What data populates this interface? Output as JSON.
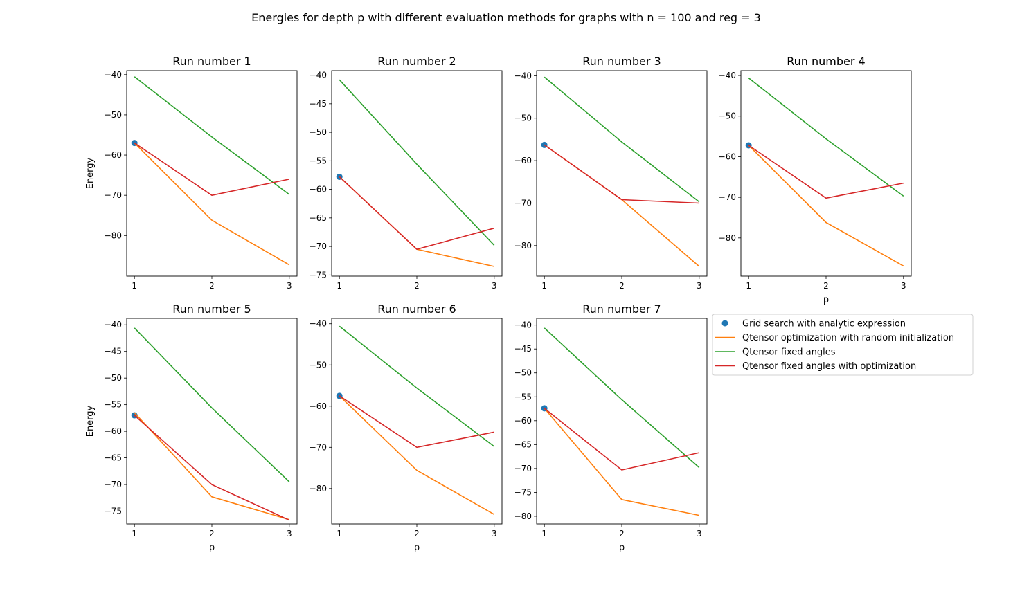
{
  "suptitle": "Energies for depth p with different evaluation methods for graphs with n = 100 and reg = 3",
  "colors": {
    "grid_search": "#1f77b4",
    "qtensor_random": "#ff7f0e",
    "qtensor_fixed": "#2ca02c",
    "qtensor_fixed_opt": "#d62728"
  },
  "legend": {
    "placement": "right of bottom row",
    "entries": [
      {
        "key": "grid_search",
        "label": "Grid search with analytic expression",
        "marker": "dot"
      },
      {
        "key": "qtensor_random",
        "label": "Qtensor optimization with random initialization",
        "marker": "line"
      },
      {
        "key": "qtensor_fixed",
        "label": "Qtensor fixed angles",
        "marker": "line"
      },
      {
        "key": "qtensor_fixed_opt",
        "label": "Qtensor fixed angles with optimization",
        "marker": "line"
      }
    ]
  },
  "chart_data": [
    {
      "type": "line",
      "title": "Run number 1",
      "xlabel": "",
      "ylabel": "Energy",
      "x": [
        1,
        2,
        3
      ],
      "xticks": [
        1,
        2,
        3
      ],
      "xlim": [
        0.9,
        3.1
      ],
      "ylim": [
        -90.1,
        -39.0
      ],
      "yticks": [
        -40,
        -50,
        -60,
        -70,
        -80
      ],
      "series": [
        {
          "key": "grid_search",
          "name": "Grid search with analytic expression",
          "x": [
            1
          ],
          "values": [
            -57.0
          ]
        },
        {
          "key": "qtensor_random",
          "name": "Qtensor optimization with random initialization",
          "values": [
            -57.0,
            -76.2,
            -87.3
          ]
        },
        {
          "key": "qtensor_fixed",
          "name": "Qtensor fixed angles",
          "values": [
            -40.5,
            -55.5,
            -69.8
          ]
        },
        {
          "key": "qtensor_fixed_opt",
          "name": "Qtensor fixed angles with optimization",
          "values": [
            -57.0,
            -70.0,
            -66.0
          ]
        }
      ]
    },
    {
      "type": "line",
      "title": "Run number 2",
      "xlabel": "",
      "ylabel": "",
      "x": [
        1,
        2,
        3
      ],
      "xticks": [
        1,
        2,
        3
      ],
      "xlim": [
        0.9,
        3.1
      ],
      "ylim": [
        -75.2,
        -39.2
      ],
      "yticks": [
        -40,
        -45,
        -50,
        -55,
        -60,
        -65,
        -70,
        -75
      ],
      "series": [
        {
          "key": "grid_search",
          "name": "Grid search with analytic expression",
          "x": [
            1
          ],
          "values": [
            -57.8
          ]
        },
        {
          "key": "qtensor_random",
          "name": "Qtensor optimization with random initialization",
          "values": [
            -57.8,
            -70.5,
            -73.5
          ]
        },
        {
          "key": "qtensor_fixed",
          "name": "Qtensor fixed angles",
          "values": [
            -40.8,
            -55.6,
            -69.8
          ]
        },
        {
          "key": "qtensor_fixed_opt",
          "name": "Qtensor fixed angles with optimization",
          "values": [
            -57.8,
            -70.5,
            -66.8
          ]
        }
      ]
    },
    {
      "type": "line",
      "title": "Run number 3",
      "xlabel": "",
      "ylabel": "",
      "x": [
        1,
        2,
        3
      ],
      "xticks": [
        1,
        2,
        3
      ],
      "xlim": [
        0.9,
        3.1
      ],
      "ylim": [
        -87.2,
        -38.8
      ],
      "yticks": [
        -40,
        -50,
        -60,
        -70,
        -80
      ],
      "series": [
        {
          "key": "grid_search",
          "name": "Grid search with analytic expression",
          "x": [
            1
          ],
          "values": [
            -56.3
          ]
        },
        {
          "key": "qtensor_random",
          "name": "Qtensor optimization with random initialization",
          "values": [
            -56.3,
            -69.2,
            -84.9
          ]
        },
        {
          "key": "qtensor_fixed",
          "name": "Qtensor fixed angles",
          "values": [
            -40.3,
            -55.6,
            -69.7
          ]
        },
        {
          "key": "qtensor_fixed_opt",
          "name": "Qtensor fixed angles with optimization",
          "values": [
            -56.3,
            -69.2,
            -70.0
          ]
        }
      ]
    },
    {
      "type": "line",
      "title": "Run number 4",
      "xlabel": "p",
      "ylabel": "",
      "x": [
        1,
        2,
        3
      ],
      "xticks": [
        1,
        2,
        3
      ],
      "xlim": [
        0.9,
        3.1
      ],
      "ylim": [
        -89.4,
        -38.8
      ],
      "yticks": [
        -40,
        -50,
        -60,
        -70,
        -80
      ],
      "series": [
        {
          "key": "grid_search",
          "name": "Grid search with analytic expression",
          "x": [
            1
          ],
          "values": [
            -57.2
          ]
        },
        {
          "key": "qtensor_random",
          "name": "Qtensor optimization with random initialization",
          "values": [
            -57.2,
            -76.2,
            -86.9
          ]
        },
        {
          "key": "qtensor_fixed",
          "name": "Qtensor fixed angles",
          "values": [
            -40.6,
            -55.6,
            -69.7
          ]
        },
        {
          "key": "qtensor_fixed_opt",
          "name": "Qtensor fixed angles with optimization",
          "values": [
            -57.2,
            -70.2,
            -66.5
          ]
        }
      ]
    },
    {
      "type": "line",
      "title": "Run number 5",
      "xlabel": "p",
      "ylabel": "Energy",
      "x": [
        1,
        2,
        3
      ],
      "xticks": [
        1,
        2,
        3
      ],
      "xlim": [
        0.9,
        3.1
      ],
      "ylim": [
        -77.4,
        -38.8
      ],
      "yticks": [
        -40,
        -45,
        -50,
        -55,
        -60,
        -65,
        -70,
        -75
      ],
      "series": [
        {
          "key": "grid_search",
          "name": "Grid search with analytic expression",
          "x": [
            1
          ],
          "values": [
            -57.0
          ]
        },
        {
          "key": "qtensor_random",
          "name": "Qtensor optimization with random initialization",
          "values": [
            -56.5,
            -72.3,
            -76.6
          ]
        },
        {
          "key": "qtensor_fixed",
          "name": "Qtensor fixed angles",
          "values": [
            -40.6,
            -55.6,
            -69.5
          ]
        },
        {
          "key": "qtensor_fixed_opt",
          "name": "Qtensor fixed angles with optimization",
          "values": [
            -57.0,
            -70.0,
            -76.7
          ]
        }
      ]
    },
    {
      "type": "line",
      "title": "Run number 6",
      "xlabel": "p",
      "ylabel": "",
      "x": [
        1,
        2,
        3
      ],
      "xticks": [
        1,
        2,
        3
      ],
      "xlim": [
        0.9,
        3.1
      ],
      "ylim": [
        -88.6,
        -38.7
      ],
      "yticks": [
        -40,
        -50,
        -60,
        -70,
        -80
      ],
      "series": [
        {
          "key": "grid_search",
          "name": "Grid search with analytic expression",
          "x": [
            1
          ],
          "values": [
            -57.5
          ]
        },
        {
          "key": "qtensor_random",
          "name": "Qtensor optimization with random initialization",
          "values": [
            -57.5,
            -75.6,
            -86.3
          ]
        },
        {
          "key": "qtensor_fixed",
          "name": "Qtensor fixed angles",
          "values": [
            -40.6,
            -55.6,
            -69.8
          ]
        },
        {
          "key": "qtensor_fixed_opt",
          "name": "Qtensor fixed angles with optimization",
          "values": [
            -57.5,
            -70.0,
            -66.3
          ]
        }
      ]
    },
    {
      "type": "line",
      "title": "Run number 7",
      "xlabel": "p",
      "ylabel": "",
      "x": [
        1,
        2,
        3
      ],
      "xticks": [
        1,
        2,
        3
      ],
      "xlim": [
        0.9,
        3.1
      ],
      "ylim": [
        -81.6,
        -38.6
      ],
      "yticks": [
        -40,
        -45,
        -50,
        -55,
        -60,
        -65,
        -70,
        -75,
        -80
      ],
      "series": [
        {
          "key": "grid_search",
          "name": "Grid search with analytic expression",
          "x": [
            1
          ],
          "values": [
            -57.4
          ]
        },
        {
          "key": "qtensor_random",
          "name": "Qtensor optimization with random initialization",
          "values": [
            -57.4,
            -76.5,
            -79.8
          ]
        },
        {
          "key": "qtensor_fixed",
          "name": "Qtensor fixed angles",
          "values": [
            -40.6,
            -55.6,
            -69.8
          ]
        },
        {
          "key": "qtensor_fixed_opt",
          "name": "Qtensor fixed angles with optimization",
          "values": [
            -57.4,
            -70.3,
            -66.7
          ]
        }
      ]
    }
  ]
}
